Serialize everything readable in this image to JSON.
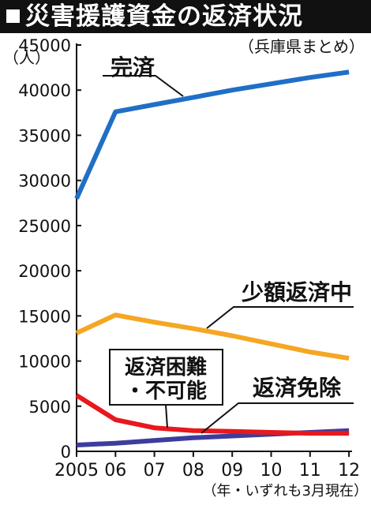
{
  "title": "災害援護資金の返済状況",
  "source_note": "（兵庫県まとめ）",
  "unit_label": "（人）",
  "footnote": "（年・いずれも3月現在）",
  "colors": {
    "title_bg": "#111111",
    "title_fg": "#ffffff",
    "完済": "#1f6fc6",
    "少額返済中": "#f5a623",
    "返済困難・不可能": "#e8181c",
    "返済免除": "#3d3d9e"
  },
  "chart_data": {
    "type": "line",
    "x": [
      "2005",
      "06",
      "07",
      "08",
      "09",
      "10",
      "11",
      "12"
    ],
    "ylim": [
      0,
      45000
    ],
    "yticks": [
      0,
      5000,
      10000,
      15000,
      20000,
      25000,
      30000,
      35000,
      40000,
      45000
    ],
    "grid": false,
    "series": [
      {
        "name": "完済",
        "color": "#1f6fc6",
        "values": [
          28000,
          37600,
          38400,
          39200,
          40000,
          40700,
          41400,
          42000
        ]
      },
      {
        "name": "少額返済中",
        "color": "#f5a623",
        "values": [
          13100,
          15100,
          14300,
          13600,
          12800,
          11900,
          11000,
          10300
        ]
      },
      {
        "name": "返済困難・不可能",
        "color": "#e8181c",
        "values": [
          6200,
          3500,
          2600,
          2300,
          2200,
          2100,
          2000,
          2000
        ]
      },
      {
        "name": "返済免除",
        "color": "#3d3d9e",
        "values": [
          700,
          900,
          1200,
          1500,
          1700,
          1900,
          2100,
          2300
        ]
      }
    ],
    "labels": {
      "完済": "完済",
      "少額返済中": "少額返済中",
      "返済困難_line1": "返済困難",
      "返済困難_line2": "・不可能",
      "返済免除": "返済免除"
    }
  }
}
